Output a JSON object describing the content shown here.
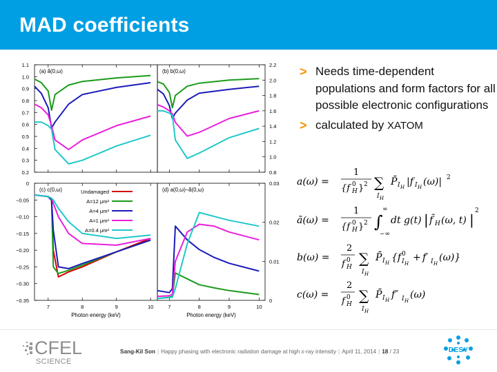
{
  "slide": {
    "title": "MAD coefficients"
  },
  "bullets": [
    {
      "text": "Needs time-dependent populations and form factors for all possible electronic configurations"
    },
    {
      "text_before": "calculated by ",
      "code": "XATOM"
    }
  ],
  "footer": {
    "author": "Sang-Kil Son",
    "talk_title": "Happy phasing with electronic radiation damage at high x-ray intensity",
    "date": "April 11, 2014",
    "page_current": "18",
    "page_total": "23"
  },
  "logos": {
    "cfel_main": "CFEL",
    "cfel_sub": "SCIENCE",
    "desy": "DESY"
  },
  "colors": {
    "header": "#009fe3",
    "bullet_arrow": "#f39200",
    "damaged_12": "#1a9a1a",
    "damaged_4": "#1a1ab8",
    "damaged_1": "#ea1edc",
    "damaged_0_4": "#1ec8c8",
    "undamaged": "#d40000"
  },
  "chart_data": [
    {
      "type": "line",
      "panel_label": "(a) ã(0,ω)",
      "x": [
        6.6,
        6.8,
        7.0,
        7.1,
        7.2,
        7.6,
        8.0,
        9.0,
        10.0
      ],
      "xlim": [
        6.6,
        10.2
      ],
      "ylim": [
        0.2,
        1.1
      ],
      "yticks": [
        "1.1",
        "1.0",
        "0.9",
        "0.8",
        "0.7",
        "0.6",
        "0.5",
        "0.4",
        "0.3",
        "0.2"
      ],
      "series": [
        {
          "name": "A=12 μm²",
          "values": [
            0.98,
            0.95,
            0.88,
            0.72,
            0.85,
            0.93,
            0.96,
            0.99,
            1.01
          ]
        },
        {
          "name": "A=4 μm²",
          "values": [
            0.92,
            0.86,
            0.74,
            0.57,
            0.62,
            0.77,
            0.85,
            0.91,
            0.95
          ]
        },
        {
          "name": "A=1 μm²",
          "values": [
            0.77,
            0.74,
            0.68,
            0.59,
            0.47,
            0.39,
            0.47,
            0.59,
            0.67
          ]
        },
        {
          "name": "A=0.4 μm²",
          "values": [
            0.62,
            0.62,
            0.59,
            0.56,
            0.39,
            0.27,
            0.3,
            0.42,
            0.51
          ]
        }
      ]
    },
    {
      "type": "line",
      "panel_label": "(b) b(0,ω)",
      "x": [
        6.6,
        6.8,
        7.0,
        7.1,
        7.2,
        7.6,
        8.0,
        9.0,
        10.0
      ],
      "xlim": [
        6.6,
        10.2
      ],
      "ylim": [
        0.8,
        2.2
      ],
      "yticks": [
        "2.2",
        "2.0",
        "1.8",
        "1.6",
        "1.4",
        "1.2",
        "1.0",
        "0.8"
      ],
      "series": [
        {
          "name": "A=12 μm²",
          "values": [
            1.98,
            1.95,
            1.84,
            1.64,
            1.8,
            1.92,
            1.96,
            2.0,
            2.02
          ]
        },
        {
          "name": "A=4 μm²",
          "values": [
            1.88,
            1.82,
            1.67,
            1.5,
            1.57,
            1.74,
            1.83,
            1.88,
            1.92
          ]
        },
        {
          "name": "A=1 μm²",
          "values": [
            1.68,
            1.65,
            1.6,
            1.56,
            1.45,
            1.27,
            1.32,
            1.5,
            1.6
          ]
        },
        {
          "name": "A=0.4 μm²",
          "values": [
            1.6,
            1.6,
            1.57,
            1.54,
            1.22,
            0.98,
            1.05,
            1.25,
            1.37
          ]
        }
      ]
    },
    {
      "type": "line",
      "panel_label": "(c) c(0,ω)",
      "x": [
        6.6,
        7.0,
        7.1,
        7.15,
        7.3,
        7.6,
        8.0,
        9.0,
        10.0
      ],
      "xlim": [
        6.6,
        10.2
      ],
      "ylim": [
        -0.35,
        0.0
      ],
      "yticks": [
        "0",
        "−0.05",
        "−0.10",
        "−0.15",
        "−0.20",
        "−0.25",
        "−0.30",
        "−0.35"
      ],
      "xticks": [
        "7",
        "8",
        "9",
        "10"
      ],
      "xlabel": "Photon energy (keV)",
      "series": [
        {
          "name": "Undamaged",
          "values": [
            -0.035,
            -0.04,
            -0.05,
            -0.2,
            -0.28,
            -0.265,
            -0.25,
            -0.205,
            -0.165
          ]
        },
        {
          "name": "A=12 μm²",
          "values": [
            -0.035,
            -0.04,
            -0.05,
            -0.25,
            -0.27,
            -0.26,
            -0.245,
            -0.205,
            -0.17
          ]
        },
        {
          "name": "A=4 μm²",
          "values": [
            -0.035,
            -0.04,
            -0.05,
            -0.14,
            -0.25,
            -0.255,
            -0.24,
            -0.205,
            -0.17
          ]
        },
        {
          "name": "A=1 μm²",
          "values": [
            -0.035,
            -0.04,
            -0.045,
            -0.06,
            -0.1,
            -0.15,
            -0.18,
            -0.185,
            -0.165
          ]
        },
        {
          "name": "A=0.4 μm²",
          "values": [
            -0.035,
            -0.04,
            -0.045,
            -0.05,
            -0.075,
            -0.115,
            -0.15,
            -0.165,
            -0.155
          ]
        }
      ]
    },
    {
      "type": "line",
      "panel_label": "(d) a(0,ω)–ã(0,ω)",
      "x": [
        6.6,
        7.0,
        7.1,
        7.2,
        7.6,
        8.0,
        8.5,
        9.0,
        10.0
      ],
      "xlim": [
        6.6,
        10.2
      ],
      "ylim": [
        0.0,
        0.03
      ],
      "yticks": [
        "0.03",
        "0.02",
        "0.01",
        "0"
      ],
      "xticks": [
        "7",
        "8",
        "9",
        "10"
      ],
      "xlabel": "Photon energy (keV)",
      "series": [
        {
          "name": "A=12 μm²",
          "values": [
            0.0005,
            0.0008,
            0.001,
            0.007,
            0.0055,
            0.004,
            0.0032,
            0.0025,
            0.0015
          ]
        },
        {
          "name": "A=4 μm²",
          "values": [
            0.0025,
            0.002,
            0.003,
            0.019,
            0.0155,
            0.013,
            0.011,
            0.0095,
            0.0075
          ]
        },
        {
          "name": "A=1 μm²",
          "values": [
            0.001,
            0.0012,
            0.0015,
            0.01,
            0.0175,
            0.0195,
            0.019,
            0.0175,
            0.0155
          ]
        },
        {
          "name": "A=0.4 μm²",
          "values": [
            0.0005,
            0.0007,
            0.0008,
            0.003,
            0.0145,
            0.0225,
            0.0215,
            0.0205,
            0.019
          ]
        }
      ]
    }
  ]
}
